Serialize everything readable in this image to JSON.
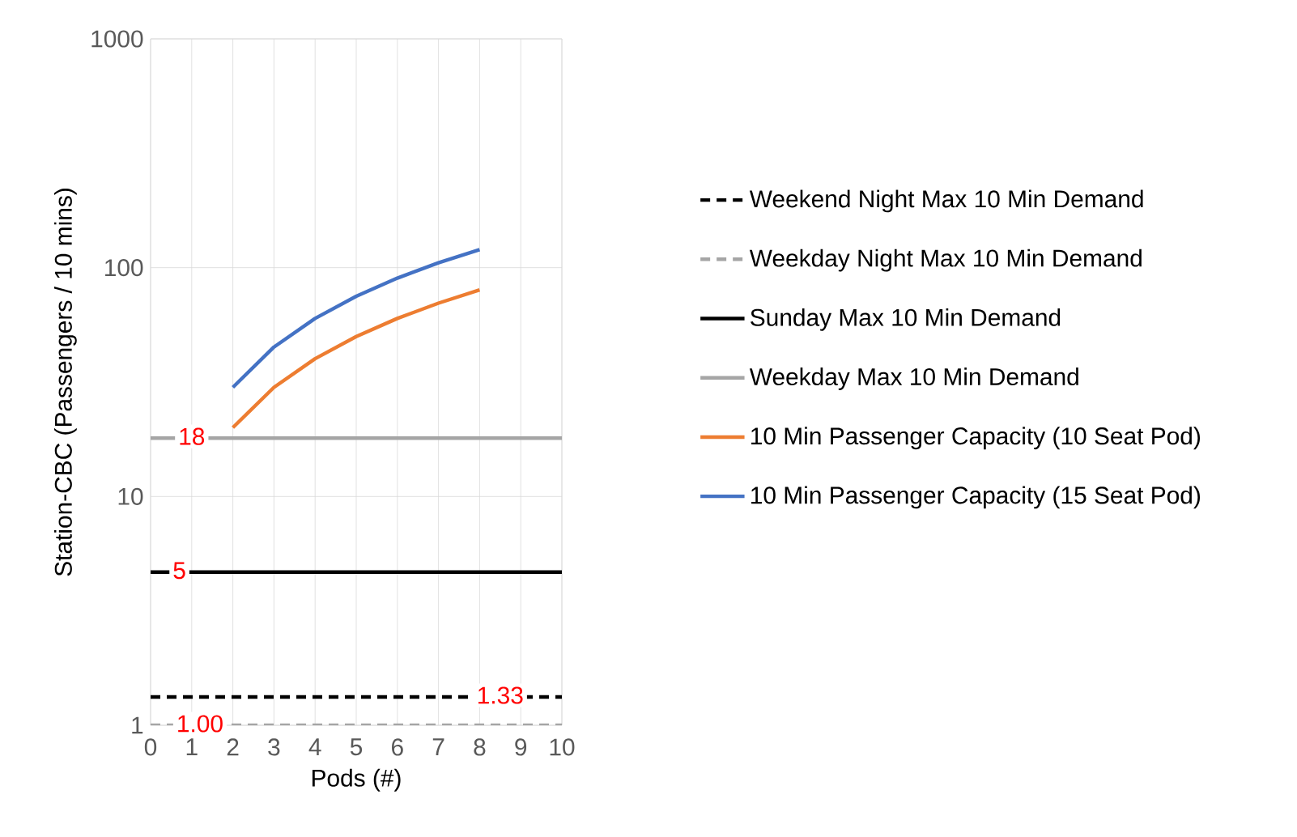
{
  "chart_data": {
    "type": "line",
    "xlabel": "Pods (#)",
    "ylabel": "Station-CBC (Passengers / 10 mins)",
    "xlim": [
      0,
      10
    ],
    "xticks": [
      0,
      1,
      2,
      3,
      4,
      5,
      6,
      7,
      8,
      9,
      10
    ],
    "ylim": [
      1,
      1000
    ],
    "yticks": [
      1,
      10,
      100,
      1000
    ],
    "log": "y",
    "grid": true,
    "legend": "right",
    "series": [
      {
        "name": "Weekend Night Max 10 Min Demand",
        "color": "#000000",
        "line_style": "dashed",
        "x": [
          0,
          10
        ],
        "values": [
          1.33,
          1.33
        ]
      },
      {
        "name": "Weekday Night Max 10 Min Demand",
        "color": "#a5a5a5",
        "line_style": "dashed",
        "x": [
          0,
          10
        ],
        "values": [
          1.0,
          1.0
        ]
      },
      {
        "name": "Sunday Max 10 Min Demand",
        "color": "#000000",
        "line_style": "solid",
        "x": [
          0,
          10
        ],
        "values": [
          4.67,
          4.67
        ]
      },
      {
        "name": "Weekday Max 10 Min Demand",
        "color": "#a5a5a5",
        "line_style": "solid",
        "x": [
          0,
          10
        ],
        "values": [
          18,
          18
        ]
      },
      {
        "name": "10 Min Passenger Capacity (10 Seat Pod)",
        "color": "#ed7d31",
        "line_style": "solid",
        "x": [
          2,
          3,
          4,
          5,
          6,
          7,
          8
        ],
        "values": [
          20,
          30,
          40,
          50,
          60,
          70,
          80
        ]
      },
      {
        "name": "10 Min Passenger Capacity (15 Seat Pod)",
        "color": "#4472c4",
        "line_style": "solid",
        "x": [
          2,
          3,
          4,
          5,
          6,
          7,
          8
        ],
        "values": [
          30,
          45,
          60,
          75,
          90,
          105,
          120
        ]
      }
    ],
    "annotations": [
      {
        "text": "18",
        "x": 1,
        "y": 18
      },
      {
        "text": "5",
        "x": 0.7,
        "y": 4.67
      },
      {
        "text": "1.33",
        "x": 8.5,
        "y": 1.33
      },
      {
        "text": "1.00",
        "x": 1.2,
        "y": 1.0
      }
    ]
  }
}
